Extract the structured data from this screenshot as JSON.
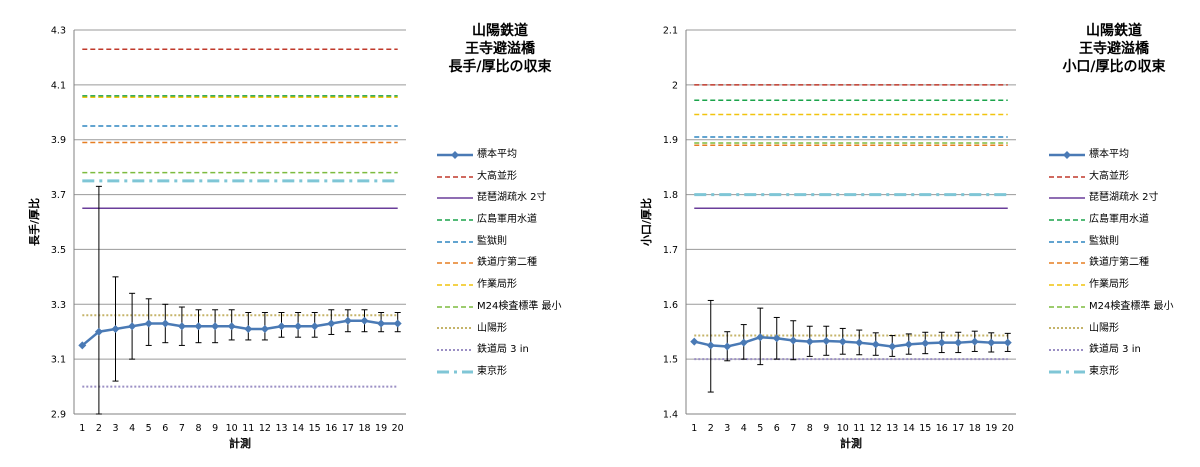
{
  "charts": [
    {
      "title_lines": [
        "山陽鉄道",
        "王寺避溢橋",
        "長手/厚比の収束"
      ],
      "xlabel": "計測",
      "ylabel": "長手/厚比"
    },
    {
      "title_lines": [
        "山陽鉄道",
        "王寺避溢橋",
        "小口/厚比の収束"
      ],
      "xlabel": "計測",
      "ylabel": "小口/厚比"
    }
  ],
  "legend_labels": [
    "標本平均",
    "大高並形",
    "琵琶湖疏水 2寸",
    "広島軍用水道",
    "監獄則",
    "鉄道庁第二種",
    "作業局形",
    "M24検査標準 最小",
    "山陽形",
    "鉄道局 3 in",
    "東京形"
  ],
  "chart_data": [
    {
      "type": "line",
      "title": "山陽鉄道 王寺避溢橋 長手/厚比の収束",
      "xlabel": "計測",
      "ylabel": "長手/厚比",
      "x": [
        1,
        2,
        3,
        4,
        5,
        6,
        7,
        8,
        9,
        10,
        11,
        12,
        13,
        14,
        15,
        16,
        17,
        18,
        19,
        20
      ],
      "ylim": [
        2.9,
        4.3
      ],
      "yticks": [
        "2.9",
        "3.1",
        "3.3",
        "3.5",
        "3.7",
        "3.9",
        "4.1",
        "4.3"
      ],
      "grid": true,
      "legend_position": "right",
      "series": [
        {
          "name": "標本平均",
          "color": "#4a7ab5",
          "style": "solid-marker",
          "values": [
            3.15,
            3.2,
            3.21,
            3.22,
            3.23,
            3.23,
            3.22,
            3.22,
            3.22,
            3.22,
            3.21,
            3.21,
            3.22,
            3.22,
            3.22,
            3.23,
            3.24,
            3.24,
            3.23,
            3.23
          ],
          "error_low": [
            3.15,
            2.9,
            3.02,
            3.1,
            3.15,
            3.16,
            3.15,
            3.16,
            3.16,
            3.17,
            3.17,
            3.17,
            3.18,
            3.18,
            3.18,
            3.19,
            3.2,
            3.2,
            3.2,
            3.2
          ],
          "error_high": [
            3.15,
            3.73,
            3.4,
            3.34,
            3.32,
            3.3,
            3.29,
            3.28,
            3.28,
            3.28,
            3.27,
            3.27,
            3.27,
            3.27,
            3.27,
            3.28,
            3.28,
            3.28,
            3.27,
            3.27
          ]
        },
        {
          "name": "大高並形",
          "color": "#c0392b",
          "style": "dash",
          "value": 4.23
        },
        {
          "name": "琵琶湖疏水 2寸",
          "color": "#6a3d9a",
          "style": "solid",
          "value": 3.65
        },
        {
          "name": "広島軍用水道",
          "color": "#1aa34a",
          "style": "dash",
          "value": 4.06
        },
        {
          "name": "監獄則",
          "color": "#2e86c1",
          "style": "dash",
          "value": 3.95
        },
        {
          "name": "鉄道庁第二種",
          "color": "#e67e22",
          "style": "dash",
          "value": 3.89
        },
        {
          "name": "作業局形",
          "color": "#f1c40f",
          "style": "dash",
          "value": 4.055
        },
        {
          "name": "M24検査標準 最小",
          "color": "#7dbb3e",
          "style": "dash",
          "value": 3.78
        },
        {
          "name": "山陽形",
          "color": "#c5b46a",
          "style": "dot",
          "value": 3.26
        },
        {
          "name": "鉄道局 3 in",
          "color": "#9b8fc4",
          "style": "dot",
          "value": 3.0
        },
        {
          "name": "東京形",
          "color": "#7fc6d6",
          "style": "dashdot",
          "value": 3.75
        }
      ]
    },
    {
      "type": "line",
      "title": "山陽鉄道 王寺避溢橋 小口/厚比の収束",
      "xlabel": "計測",
      "ylabel": "小口/厚比",
      "x": [
        1,
        2,
        3,
        4,
        5,
        6,
        7,
        8,
        9,
        10,
        11,
        12,
        13,
        14,
        15,
        16,
        17,
        18,
        19,
        20
      ],
      "ylim": [
        1.4,
        2.1
      ],
      "yticks": [
        "1.4",
        "1.5",
        "1.6",
        "1.7",
        "1.8",
        "1.9",
        "2",
        "2.1"
      ],
      "grid": true,
      "legend_position": "right",
      "series": [
        {
          "name": "標本平均",
          "color": "#4a7ab5",
          "style": "solid-marker",
          "values": [
            1.532,
            1.525,
            1.523,
            1.53,
            1.54,
            1.538,
            1.534,
            1.532,
            1.533,
            1.532,
            1.53,
            1.527,
            1.523,
            1.527,
            1.529,
            1.53,
            1.53,
            1.532,
            1.53,
            1.53
          ],
          "error_low": [
            1.532,
            1.44,
            1.497,
            1.5,
            1.49,
            1.5,
            1.499,
            1.505,
            1.507,
            1.509,
            1.508,
            1.507,
            1.505,
            1.509,
            1.51,
            1.512,
            1.512,
            1.514,
            1.513,
            1.514
          ],
          "error_high": [
            1.532,
            1.607,
            1.55,
            1.563,
            1.593,
            1.576,
            1.57,
            1.56,
            1.56,
            1.556,
            1.553,
            1.548,
            1.543,
            1.546,
            1.549,
            1.549,
            1.549,
            1.551,
            1.548,
            1.547
          ]
        },
        {
          "name": "大高並形",
          "color": "#c0392b",
          "style": "dash",
          "value": 2.0
        },
        {
          "name": "琵琶湖疏水 2寸",
          "color": "#6a3d9a",
          "style": "solid",
          "value": 1.775
        },
        {
          "name": "広島軍用水道",
          "color": "#1aa34a",
          "style": "dash",
          "value": 1.972
        },
        {
          "name": "監獄則",
          "color": "#2e86c1",
          "style": "dash",
          "value": 1.905
        },
        {
          "name": "鉄道庁第二種",
          "color": "#e67e22",
          "style": "dash",
          "value": 1.89
        },
        {
          "name": "作業局形",
          "color": "#f1c40f",
          "style": "dash",
          "value": 1.946
        },
        {
          "name": "M24検査標準 最小",
          "color": "#7dbb3e",
          "style": "dash",
          "value": 1.894
        },
        {
          "name": "山陽形",
          "color": "#c5b46a",
          "style": "dot",
          "value": 1.543
        },
        {
          "name": "鉄道局 3 in",
          "color": "#9b8fc4",
          "style": "dot",
          "value": 1.5
        },
        {
          "name": "東京形",
          "color": "#7fc6d6",
          "style": "dashdot",
          "value": 1.8
        }
      ]
    }
  ]
}
